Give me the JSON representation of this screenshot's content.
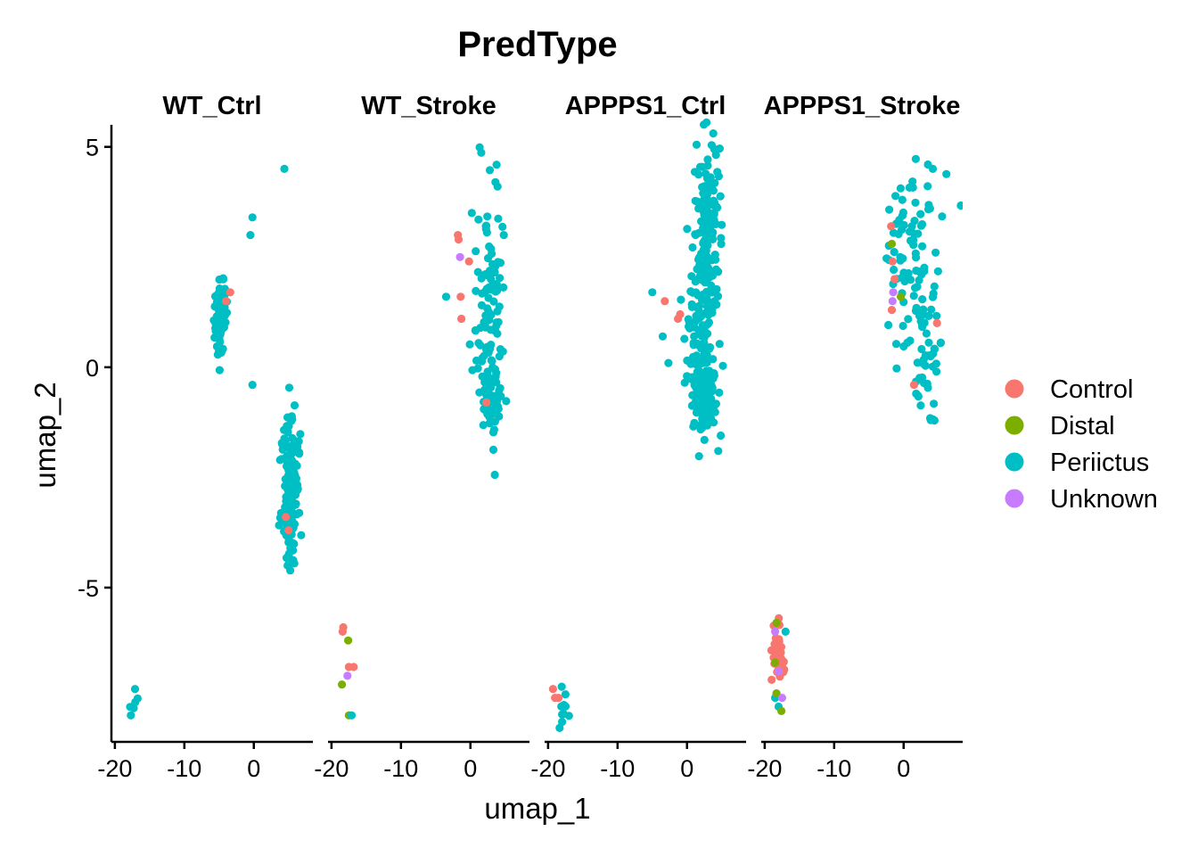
{
  "chart_data": {
    "type": "scatter",
    "title": "PredType",
    "xlabel": "umap_1",
    "ylabel": "umap_2",
    "xlim": [
      -20.5,
      8.5
    ],
    "ylim": [
      -8.5,
      5.5
    ],
    "x_ticks": [
      -20,
      -10,
      0
    ],
    "y_ticks": [
      5,
      0,
      -5
    ],
    "grid": false,
    "legend_position": "right",
    "legend": [
      {
        "name": "Control",
        "color": "#F8766D"
      },
      {
        "name": "Distal",
        "color": "#7CAE00"
      },
      {
        "name": "Periictus",
        "color": "#00BFC4"
      },
      {
        "name": "Unknown",
        "color": "#C77CFF"
      }
    ],
    "facets": [
      {
        "name": "WT_Ctrl",
        "clusters": [
          {
            "category": "Periictus",
            "cx": -4.8,
            "cy": 1.2,
            "sx": 0.45,
            "sy": 0.45,
            "n": 70
          },
          {
            "category": "Periictus",
            "cx": 5.3,
            "cy": -2.8,
            "sx": 0.55,
            "sy": 0.75,
            "n": 170
          },
          {
            "category": "Periictus",
            "cx": 4.3,
            "cy": -1.8,
            "sx": 0.3,
            "sy": 0.25,
            "n": 10
          },
          {
            "category": "Periictus",
            "cx": -17.5,
            "cy": -7.7,
            "sx": 0.3,
            "sy": 0.15,
            "n": 4
          }
        ],
        "points": [
          {
            "category": "Periictus",
            "x": 4.4,
            "y": 4.5
          },
          {
            "category": "Periictus",
            "x": -0.2,
            "y": 3.4
          },
          {
            "category": "Periictus",
            "x": -0.5,
            "y": 3.0
          },
          {
            "category": "Periictus",
            "x": -0.2,
            "y": -0.4
          },
          {
            "category": "Periictus",
            "x": -17.1,
            "y": -7.3
          },
          {
            "category": "Periictus",
            "x": -17.7,
            "y": -7.9
          },
          {
            "category": "Control",
            "x": -3.4,
            "y": 1.7
          },
          {
            "category": "Control",
            "x": -4.0,
            "y": 1.5
          },
          {
            "category": "Control",
            "x": 4.6,
            "y": -3.4
          },
          {
            "category": "Control",
            "x": 5.0,
            "y": -3.7
          }
        ]
      },
      {
        "name": "WT_Stroke",
        "clusters": [
          {
            "category": "Periictus",
            "cx": 2.8,
            "cy": 1.3,
            "sx": 1.0,
            "sy": 1.35,
            "n": 110
          },
          {
            "category": "Periictus",
            "cx": 3.2,
            "cy": -0.8,
            "sx": 0.8,
            "sy": 0.4,
            "n": 40
          }
        ],
        "points": [
          {
            "category": "Periictus",
            "x": 3.6,
            "y": 4.2
          },
          {
            "category": "Periictus",
            "x": 3.9,
            "y": 4.1
          },
          {
            "category": "Periictus",
            "x": 4.8,
            "y": 3.0
          },
          {
            "category": "Periictus",
            "x": -3.5,
            "y": 1.6
          },
          {
            "category": "Periictus",
            "x": 0.2,
            "y": 3.5
          },
          {
            "category": "Control",
            "x": -1.8,
            "y": 3.0
          },
          {
            "category": "Control",
            "x": -1.7,
            "y": 2.9
          },
          {
            "category": "Control",
            "x": -0.2,
            "y": 2.4
          },
          {
            "category": "Control",
            "x": -1.4,
            "y": 1.6
          },
          {
            "category": "Control",
            "x": -1.3,
            "y": 1.1
          },
          {
            "category": "Control",
            "x": 2.3,
            "y": -0.8
          },
          {
            "category": "Unknown",
            "x": -1.5,
            "y": 2.5
          },
          {
            "category": "Control",
            "x": -18.3,
            "y": -5.9
          },
          {
            "category": "Control",
            "x": -18.4,
            "y": -6.0
          },
          {
            "category": "Control",
            "x": -17.5,
            "y": -6.8
          },
          {
            "category": "Control",
            "x": -16.8,
            "y": -6.8
          },
          {
            "category": "Distal",
            "x": -17.6,
            "y": -6.2
          },
          {
            "category": "Distal",
            "x": -18.5,
            "y": -7.2
          },
          {
            "category": "Distal",
            "x": -17.5,
            "y": -7.9
          },
          {
            "category": "Unknown",
            "x": -17.7,
            "y": -7.0
          },
          {
            "category": "Periictus",
            "x": -17.1,
            "y": -7.9
          }
        ]
      },
      {
        "name": "APPPS1_Ctrl",
        "clusters": [
          {
            "category": "Periictus",
            "cx": 3.0,
            "cy": 2.9,
            "sx": 1.0,
            "sy": 1.1,
            "n": 170
          },
          {
            "category": "Periictus",
            "cx": 2.3,
            "cy": -0.5,
            "sx": 1.0,
            "sy": 0.55,
            "n": 130
          },
          {
            "category": "Periictus",
            "cx": 1.2,
            "cy": 1.0,
            "sx": 1.2,
            "sy": 0.5,
            "n": 40
          },
          {
            "category": "Periictus",
            "cx": -17.8,
            "cy": -7.7,
            "sx": 0.5,
            "sy": 0.2,
            "n": 10
          }
        ],
        "points": [
          {
            "category": "Periictus",
            "x": -5.0,
            "y": 1.7
          },
          {
            "category": "Periictus",
            "x": -3.5,
            "y": 0.7
          },
          {
            "category": "Periictus",
            "x": 4.5,
            "y": -1.9
          },
          {
            "category": "Control",
            "x": -3.2,
            "y": 1.5
          },
          {
            "category": "Control",
            "x": -1.0,
            "y": 1.2
          },
          {
            "category": "Control",
            "x": -1.3,
            "y": 1.1
          },
          {
            "category": "Control",
            "x": -19.3,
            "y": -7.3
          },
          {
            "category": "Control",
            "x": -19.0,
            "y": -7.5
          },
          {
            "category": "Control",
            "x": -18.5,
            "y": -7.5
          }
        ]
      },
      {
        "name": "APPPS1_Stroke",
        "clusters": [
          {
            "category": "Periictus",
            "cx": 1.2,
            "cy": 2.3,
            "sx": 2.0,
            "sy": 1.1,
            "n": 90
          },
          {
            "category": "Periictus",
            "cx": 3.5,
            "cy": 0.0,
            "sx": 1.3,
            "sy": 0.7,
            "n": 30
          },
          {
            "category": "Control",
            "cx": -18.0,
            "cy": -6.7,
            "sx": 0.5,
            "sy": 0.5,
            "n": 32
          }
        ],
        "points": [
          {
            "category": "Periictus",
            "x": 3.5,
            "y": 4.6
          },
          {
            "category": "Periictus",
            "x": 4.2,
            "y": 4.5
          },
          {
            "category": "Periictus",
            "x": 3.8,
            "y": 3.6
          },
          {
            "category": "Periictus",
            "x": 1.2,
            "y": 3.2
          },
          {
            "category": "Periictus",
            "x": 4.6,
            "y": 2.6
          },
          {
            "category": "Periictus",
            "x": 1.8,
            "y": -0.6
          },
          {
            "category": "Periictus",
            "x": 3.9,
            "y": -1.2
          },
          {
            "category": "Periictus",
            "x": -18.0,
            "y": -7.7
          },
          {
            "category": "Periictus",
            "x": -18.5,
            "y": -7.5
          },
          {
            "category": "Periictus",
            "x": -17.0,
            "y": -6.0
          },
          {
            "category": "Control",
            "x": -1.8,
            "y": 3.2
          },
          {
            "category": "Control",
            "x": -1.6,
            "y": 2.4
          },
          {
            "category": "Control",
            "x": -1.7,
            "y": 1.3
          },
          {
            "category": "Control",
            "x": -1.3,
            "y": 2.0
          },
          {
            "category": "Control",
            "x": 1.5,
            "y": -0.4
          },
          {
            "category": "Control",
            "x": 4.8,
            "y": 1.0
          },
          {
            "category": "Distal",
            "x": -1.7,
            "y": 2.8
          },
          {
            "category": "Distal",
            "x": -0.4,
            "y": 1.6
          },
          {
            "category": "Distal",
            "x": -18.3,
            "y": -5.8
          },
          {
            "category": "Distal",
            "x": -18.5,
            "y": -6.7
          },
          {
            "category": "Distal",
            "x": -18.3,
            "y": -7.4
          },
          {
            "category": "Distal",
            "x": -17.6,
            "y": -7.8
          },
          {
            "category": "Unknown",
            "x": -1.5,
            "y": 1.7
          },
          {
            "category": "Unknown",
            "x": -1.6,
            "y": 1.5
          },
          {
            "category": "Unknown",
            "x": -18.5,
            "y": -6.0
          },
          {
            "category": "Unknown",
            "x": -18.0,
            "y": -6.9
          },
          {
            "category": "Unknown",
            "x": -17.5,
            "y": -7.5
          }
        ]
      }
    ]
  }
}
